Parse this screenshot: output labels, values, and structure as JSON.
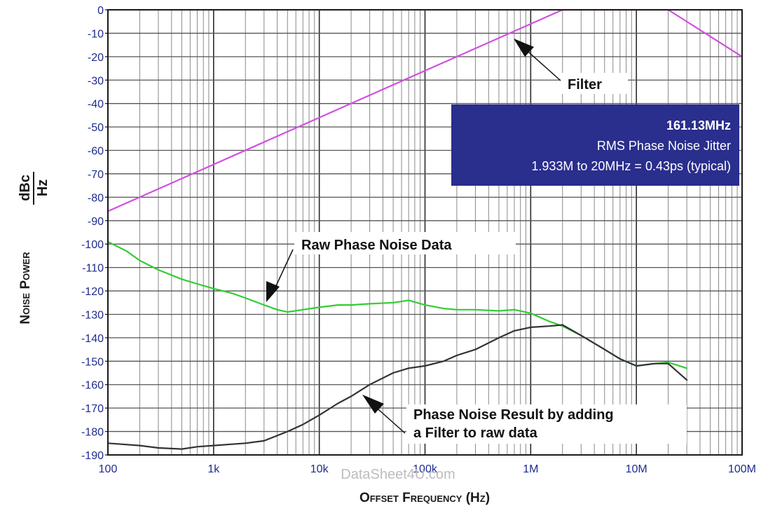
{
  "chart_data": {
    "type": "line",
    "xscale": "log",
    "xlim": [
      100,
      100000000
    ],
    "ylim": [
      -190,
      0
    ],
    "x_tick_values": [
      100,
      1000,
      10000,
      100000,
      1000000,
      10000000,
      100000000
    ],
    "x_tick_labels": [
      "100",
      "1k",
      "10k",
      "100k",
      "1M",
      "10M",
      "100M"
    ],
    "y_ticks": [
      0,
      -10,
      -20,
      -30,
      -40,
      -50,
      -60,
      -70,
      -80,
      -90,
      -100,
      -110,
      -120,
      -130,
      -140,
      -150,
      -160,
      -170,
      -180,
      -190
    ],
    "xlabel": "Offset Frequency (Hz)",
    "ylabel": "Noise Power",
    "ylabel_unit_num": "dBc",
    "ylabel_unit_den": "Hz",
    "grid": true,
    "series": [
      {
        "name": "Filter",
        "color": "#d24fe0",
        "x": [
          100,
          1000,
          10000,
          100000,
          1000000,
          2000000,
          20000000,
          100000000
        ],
        "y": [
          -86,
          -66,
          -46,
          -26,
          -6,
          0,
          0,
          -20
        ]
      },
      {
        "name": "Raw Phase Noise Data",
        "color": "#33cc33",
        "x": [
          100,
          150,
          200,
          300,
          500,
          700,
          1000,
          1500,
          2000,
          3000,
          4000,
          5000,
          7000,
          10000,
          15000,
          20000,
          30000,
          50000,
          70000,
          100000,
          150000,
          200000,
          300000,
          500000,
          700000,
          1000000,
          1500000,
          2000000,
          3000000,
          5000000,
          7000000,
          10000000,
          15000000,
          20000000,
          30000000
        ],
        "y": [
          -99,
          -103,
          -107,
          -111,
          -115,
          -117,
          -119,
          -121,
          -123,
          -126,
          -128,
          -129,
          -128,
          -127,
          -126,
          -126,
          -125.5,
          -125,
          -124,
          -126,
          -127.5,
          -128,
          -128,
          -128.5,
          -128,
          -129.5,
          -133,
          -135,
          -139,
          -145,
          -149,
          -152,
          -151,
          -150.5,
          -153
        ]
      },
      {
        "name": "Phase Noise Result by adding a Filter to raw data",
        "color": "#333333",
        "x": [
          100,
          200,
          300,
          500,
          700,
          1000,
          2000,
          3000,
          5000,
          7000,
          10000,
          15000,
          20000,
          30000,
          50000,
          70000,
          100000,
          150000,
          200000,
          300000,
          500000,
          700000,
          1000000,
          1500000,
          2000000,
          3000000,
          5000000,
          7000000,
          10000000,
          15000000,
          20000000,
          30000000
        ],
        "y": [
          -185,
          -186,
          -187,
          -187.5,
          -186.5,
          -186,
          -185,
          -184,
          -180,
          -177,
          -173,
          -168,
          -165,
          -160,
          -155,
          -153,
          -152,
          -150,
          -147.5,
          -145,
          -140,
          -137,
          -135.5,
          -135,
          -134.5,
          -139,
          -145,
          -149,
          -152,
          -151,
          -151,
          -158
        ]
      }
    ],
    "annotations": {
      "filter_label": "Filter",
      "raw_label": "Raw Phase Noise Data",
      "result_label_line1": "Phase Noise Result by adding",
      "result_label_line2": "a Filter to raw data"
    },
    "info_box": {
      "line1": "161.13MHz",
      "line2": "RMS Phase Noise Jitter",
      "line3": "1.933M to 20MHz = 0.43ps (typical)",
      "color": "#2a2e8c"
    },
    "watermark": "DataSheet4U.com"
  }
}
